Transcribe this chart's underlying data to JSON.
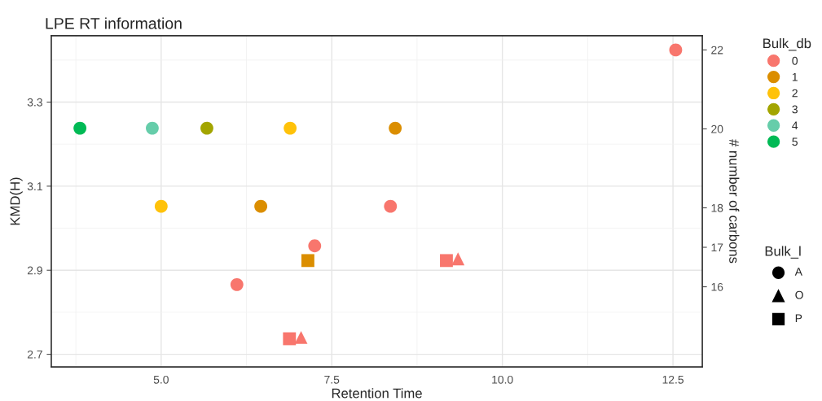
{
  "chart_data": {
    "type": "scatter",
    "title": "LPE RT information",
    "xlabel": "Retention Time",
    "ylabel": "KMD(H)",
    "y2label": "# number of carbons",
    "legend_title": "Bulk_db",
    "legend": "right",
    "grid": true,
    "annotations": [
      "Bulk_l",
      "A",
      "O",
      "P"
    ],
    "xlim": [
      3.39,
      12.93
    ],
    "xticks": [
      {
        "value": 5,
        "label": "5.0"
      },
      {
        "value": 7.5,
        "label": "7.5"
      },
      {
        "value": 10,
        "label": "10.0"
      },
      {
        "value": 12.5,
        "label": "12.5"
      }
    ],
    "ylim": [
      2.67,
      3.458
    ],
    "yticks": [
      {
        "value": 2.7,
        "label": "2.7"
      },
      {
        "value": 2.9,
        "label": "2.9"
      },
      {
        "value": 3.1,
        "label": "3.1"
      },
      {
        "value": 3.3,
        "label": "3.3"
      }
    ],
    "y2lim": [
      13.97,
      22.36
    ],
    "y2ticks": [
      16,
      17,
      18,
      20,
      22
    ],
    "series": [
      {
        "name": "0",
        "color": "#f8766d",
        "marker": "circle",
        "x": [
          12.54,
          8.36,
          7.25,
          6.11
        ],
        "values": [
          3.424,
          3.052,
          2.958,
          2.866
        ]
      },
      {
        "color": "#f8766d",
        "marker": "square",
        "x": [
          9.18,
          6.88
        ],
        "values": [
          2.923,
          2.737
        ]
      },
      {
        "color": "#f8766d",
        "marker": "triangle",
        "x": [
          9.35,
          7.05
        ],
        "values": [
          2.927,
          2.74
        ]
      },
      {
        "name": "1",
        "color": "#db8e00",
        "marker": "circle",
        "x": [
          8.43,
          6.46
        ],
        "values": [
          3.238,
          3.052
        ]
      },
      {
        "color": "#db8e00",
        "marker": "square",
        "x": [
          7.15
        ],
        "values": [
          2.923
        ]
      },
      {
        "name": "2",
        "color": "#ffc20a",
        "x": [
          6.89,
          5.0
        ],
        "values": [
          3.238,
          3.052
        ]
      },
      {
        "name": "3",
        "color": "#a3a500",
        "x": [
          5.67
        ],
        "values": [
          3.238
        ]
      },
      {
        "name": "4",
        "color": "#66cdaa",
        "x": [
          4.87
        ],
        "values": [
          3.238
        ]
      },
      {
        "name": "5",
        "color": "#00ba55",
        "x": [
          3.81
        ],
        "values": [
          3.238
        ]
      }
    ]
  }
}
